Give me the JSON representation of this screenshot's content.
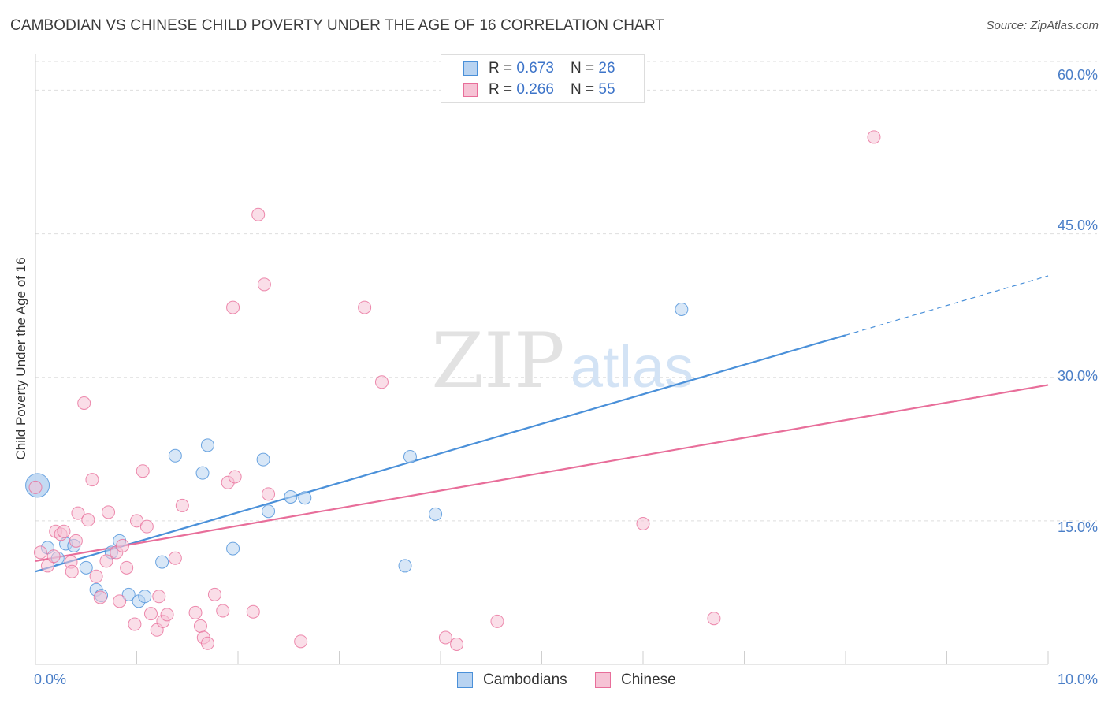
{
  "title": "CAMBODIAN VS CHINESE CHILD POVERTY UNDER THE AGE OF 16 CORRELATION CHART",
  "source": "Source: ZipAtlas.com",
  "watermark": {
    "zip": "ZIP",
    "atlas": "atlas"
  },
  "stats": [
    {
      "r_label": "R = ",
      "r_value": "0.673",
      "n_label": "N = ",
      "n_value": "26",
      "color": "#4a90d9"
    },
    {
      "r_label": "R = ",
      "r_value": "0.266",
      "n_label": "N = ",
      "n_value": "55",
      "color": "#e86e9a"
    }
  ],
  "legend": [
    {
      "label": "Cambodians",
      "color": "#4a90d9"
    },
    {
      "label": "Chinese",
      "color": "#e86e9a"
    }
  ],
  "chart_data": {
    "type": "scatter",
    "title": "CAMBODIAN VS CHINESE CHILD POVERTY UNDER THE AGE OF 16 CORRELATION CHART",
    "xlabel": "",
    "ylabel": "Child Poverty Under the Age of 16",
    "xlim": [
      0,
      10
    ],
    "ylim": [
      0,
      63
    ],
    "x_tick_labels": [
      "0.0%",
      "10.0%"
    ],
    "y_ticks": [
      15,
      30,
      45,
      60
    ],
    "y_tick_labels": [
      "15.0%",
      "30.0%",
      "45.0%",
      "60.0%"
    ],
    "series": [
      {
        "name": "Cambodians",
        "color": "#4a90d9",
        "fill": "#b8d3f1",
        "points": [
          [
            0.02,
            18.7
          ],
          [
            0.12,
            12.2
          ],
          [
            0.22,
            11.1
          ],
          [
            0.3,
            12.6
          ],
          [
            0.38,
            12.4
          ],
          [
            0.5,
            10.1
          ],
          [
            0.6,
            7.8
          ],
          [
            0.65,
            7.2
          ],
          [
            0.75,
            11.7
          ],
          [
            0.83,
            12.9
          ],
          [
            0.92,
            7.3
          ],
          [
            1.02,
            6.6
          ],
          [
            1.08,
            7.1
          ],
          [
            1.25,
            10.7
          ],
          [
            1.38,
            21.8
          ],
          [
            1.65,
            20.0
          ],
          [
            1.7,
            22.9
          ],
          [
            1.95,
            12.1
          ],
          [
            2.25,
            21.4
          ],
          [
            2.3,
            16.0
          ],
          [
            2.52,
            17.5
          ],
          [
            2.66,
            17.4
          ],
          [
            3.65,
            10.3
          ],
          [
            3.7,
            21.7
          ],
          [
            3.95,
            15.7
          ],
          [
            6.38,
            37.1
          ]
        ],
        "trend": {
          "x0": 0.0,
          "y0": 9.7,
          "x1": 8.0,
          "y1": 34.4,
          "dash_x1": 10.0,
          "dash_y1": 40.6
        }
      },
      {
        "name": "Chinese",
        "color": "#e86e9a",
        "fill": "#f6c3d5",
        "points": [
          [
            0.05,
            11.7
          ],
          [
            0.12,
            10.3
          ],
          [
            0.18,
            11.3
          ],
          [
            0.2,
            13.9
          ],
          [
            0.25,
            13.6
          ],
          [
            0.28,
            13.9
          ],
          [
            0.35,
            10.7
          ],
          [
            0.36,
            9.7
          ],
          [
            0.4,
            12.9
          ],
          [
            0.42,
            15.8
          ],
          [
            0.48,
            27.3
          ],
          [
            0.52,
            15.1
          ],
          [
            0.56,
            19.3
          ],
          [
            0.6,
            9.2
          ],
          [
            0.64,
            7.0
          ],
          [
            0.7,
            10.8
          ],
          [
            0.72,
            15.9
          ],
          [
            0.8,
            11.7
          ],
          [
            0.83,
            6.6
          ],
          [
            0.86,
            12.4
          ],
          [
            0.9,
            10.1
          ],
          [
            0.98,
            4.2
          ],
          [
            1.0,
            15.0
          ],
          [
            1.06,
            20.2
          ],
          [
            1.1,
            14.4
          ],
          [
            1.14,
            5.3
          ],
          [
            1.2,
            3.6
          ],
          [
            1.22,
            7.1
          ],
          [
            1.26,
            4.5
          ],
          [
            1.3,
            5.2
          ],
          [
            1.38,
            11.1
          ],
          [
            1.45,
            16.6
          ],
          [
            1.58,
            5.4
          ],
          [
            1.63,
            4.0
          ],
          [
            1.66,
            2.8
          ],
          [
            1.7,
            2.2
          ],
          [
            1.77,
            7.3
          ],
          [
            1.85,
            5.6
          ],
          [
            1.9,
            19.0
          ],
          [
            1.95,
            37.3
          ],
          [
            1.97,
            19.6
          ],
          [
            2.15,
            5.5
          ],
          [
            2.2,
            47.0
          ],
          [
            2.26,
            39.7
          ],
          [
            2.3,
            17.8
          ],
          [
            2.62,
            2.4
          ],
          [
            3.25,
            37.3
          ],
          [
            3.42,
            29.5
          ],
          [
            4.05,
            2.8
          ],
          [
            4.16,
            2.1
          ],
          [
            4.56,
            4.5
          ],
          [
            6.0,
            14.7
          ],
          [
            6.7,
            4.8
          ],
          [
            8.28,
            55.1
          ],
          [
            0.0,
            18.5
          ]
        ],
        "trend": {
          "x0": 0.0,
          "y0": 10.8,
          "x1": 10.0,
          "y1": 29.2
        }
      }
    ]
  }
}
